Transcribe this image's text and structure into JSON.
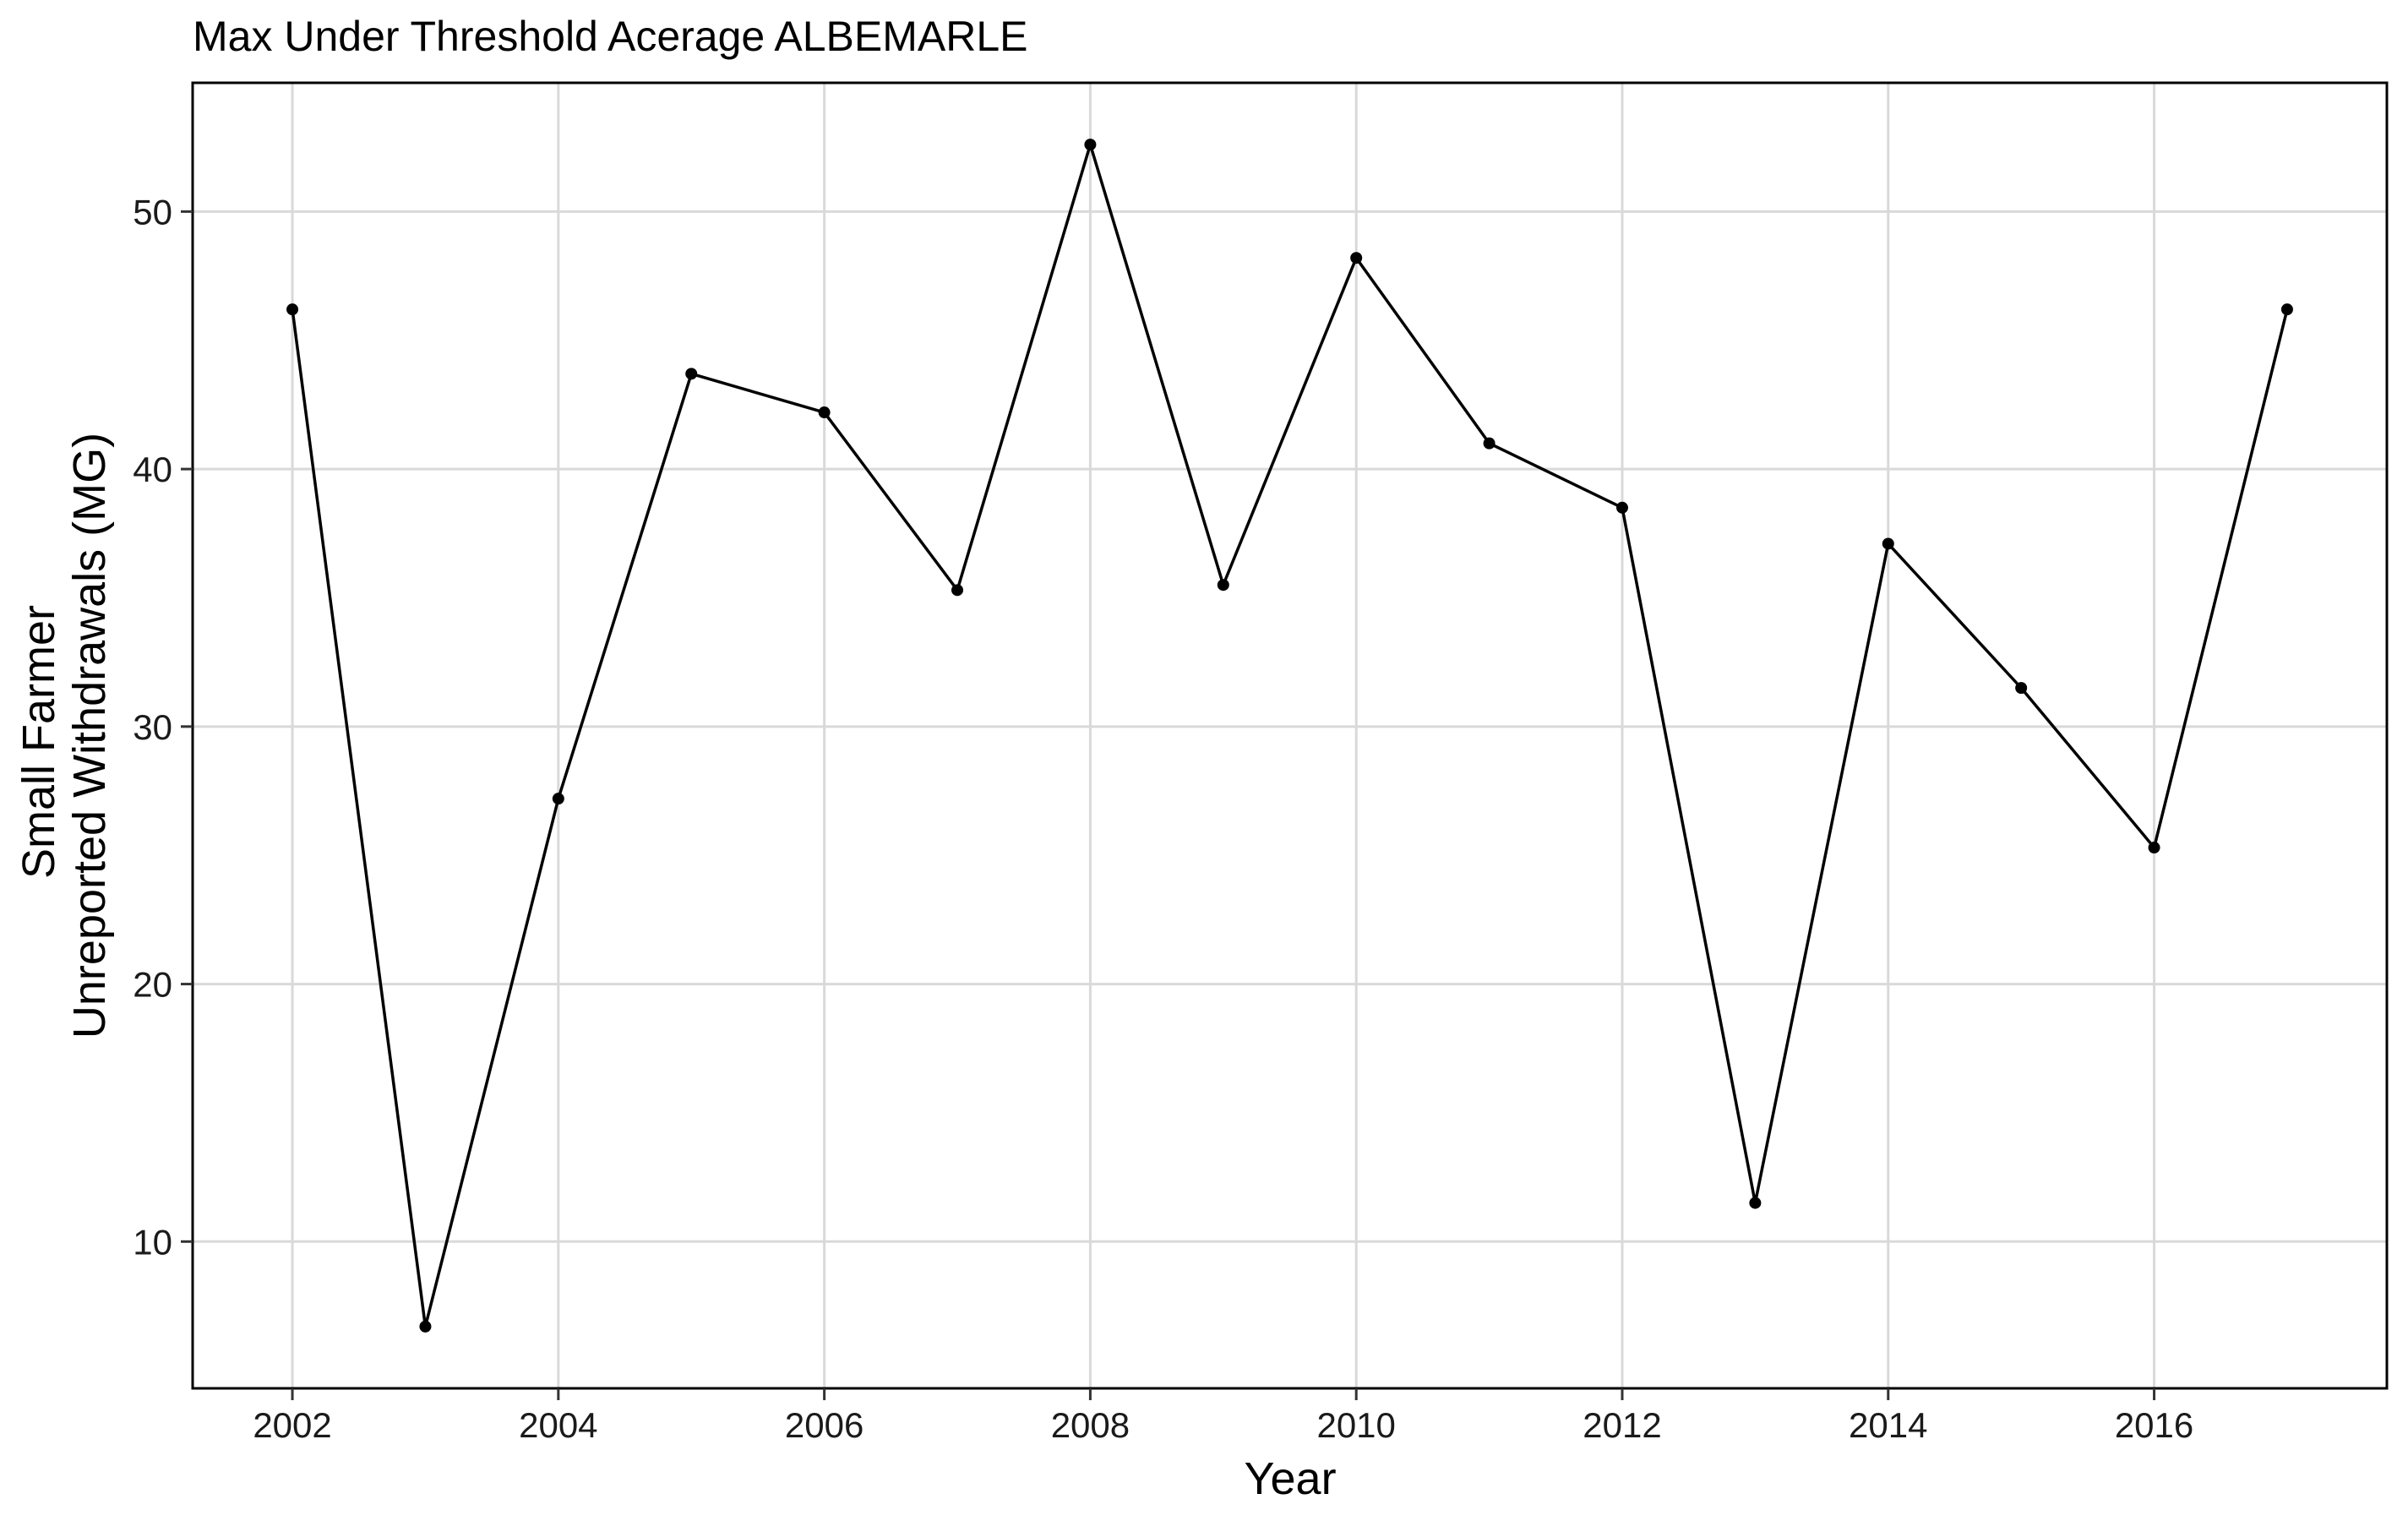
{
  "chart_data": {
    "type": "line",
    "title": "Max Under Threshold Acerage ALBEMARLE",
    "xlabel": "Year",
    "ylabel_lines": [
      "Small Farmer",
      "Unreported Withdrawals (MG)"
    ],
    "x": [
      2002,
      2003,
      2004,
      2005,
      2006,
      2007,
      2008,
      2009,
      2010,
      2011,
      2012,
      2013,
      2014,
      2015,
      2016,
      2017
    ],
    "series": [
      {
        "values": [
          46.2,
          6.7,
          27.2,
          43.7,
          42.2,
          35.3,
          52.6,
          35.5,
          48.2,
          41.0,
          38.5,
          11.5,
          37.1,
          31.5,
          25.3,
          46.2
        ]
      }
    ],
    "xlim": [
      2001.25,
      2017.75
    ],
    "ylim": [
      4.3,
      55.0
    ],
    "x_ticks": [
      2002,
      2004,
      2006,
      2008,
      2010,
      2012,
      2014,
      2016
    ],
    "y_ticks": [
      10,
      20,
      30,
      40,
      50
    ],
    "grid": true,
    "line_color": "#000000",
    "grid_color": "#d9d9d9"
  }
}
